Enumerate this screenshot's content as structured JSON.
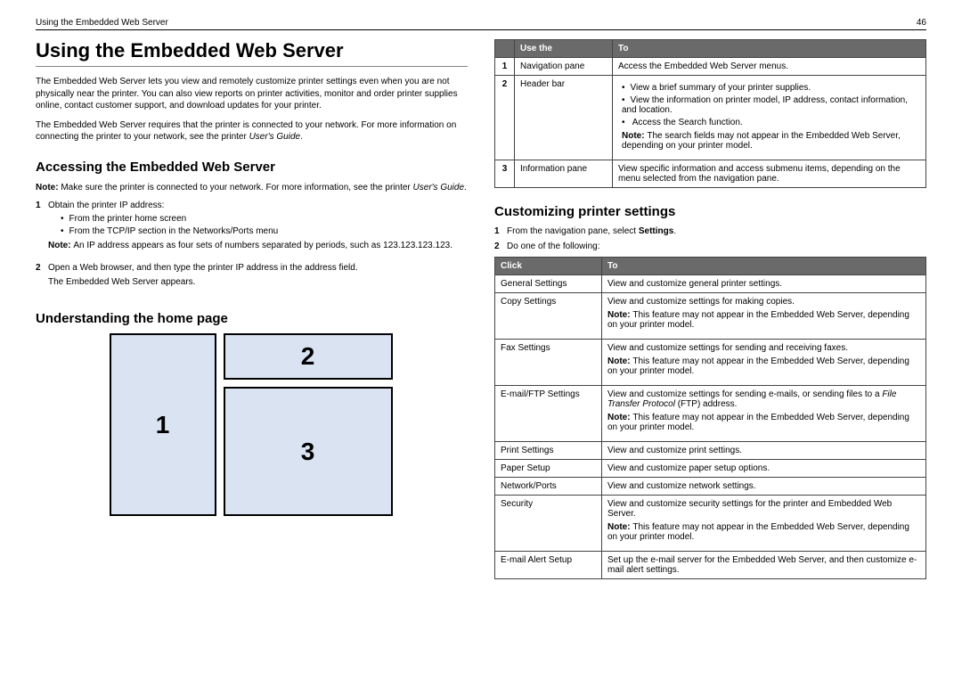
{
  "header": {
    "left": "Using the Embedded Web Server",
    "page": "46"
  },
  "h1": "Using the Embedded Web Server",
  "intro1": "The Embedded Web Server lets you view and remotely customize printer settings even when you are not physically near the printer. You can also view reports on printer activities, monitor and order printer supplies online, contact customer support, and download updates for your printer.",
  "intro2_a": "The Embedded Web Server requires that the printer is connected to your network. For more information on connecting the printer to your network, see the printer ",
  "intro2_b": "User's Guide",
  "intro2_c": ".",
  "h2_access": "Accessing the Embedded Web Server",
  "access_note_a": "Note: ",
  "access_note_b": "Make sure the printer is connected to your network. For more information, see the printer ",
  "access_note_c": "User's Guide",
  "access_note_d": ".",
  "step1": "Obtain the printer IP address:",
  "step1_b1": "From the printer home screen",
  "step1_b2": "From the TCP/IP section in the Networks/Ports menu",
  "step1_note_a": "Note: ",
  "step1_note_b": "An IP address appears as four sets of numbers separated by periods, such as 123.123.123.123.",
  "step2": "Open a Web browser, and then type the printer IP address in the address field.",
  "step2_sub": "The Embedded Web Server appears.",
  "h2_home": "Understanding the home page",
  "diagram": {
    "l1": "1",
    "l2": "2",
    "l3": "3"
  },
  "table1": {
    "h0": "",
    "h1": "Use the",
    "h2": "To",
    "r1": {
      "n": "1",
      "name": "Navigation pane",
      "to": "Access the Embedded Web Server menus."
    },
    "r2": {
      "n": "2",
      "name": "Header bar",
      "b1": "View a brief summary of your printer supplies.",
      "b2": "View the information on printer model, IP address, contact information, and location.",
      "b3": "Access the Search function.",
      "note_a": "Note: ",
      "note_b": "The search fields may not appear in the Embedded Web Server, depending on your printer model."
    },
    "r3": {
      "n": "3",
      "name": "Information pane",
      "to": "View specific information and access submenu items, depending on the menu selected from the navigation pane."
    }
  },
  "h2_custom": "Customizing printer settings",
  "cust_s1_a": "From the navigation pane, select ",
  "cust_s1_b": "Settings",
  "cust_s1_c": ".",
  "cust_s2": "Do one of the following:",
  "table2": {
    "h1": "Click",
    "h2": "To",
    "rows": [
      {
        "click": "General Settings",
        "to": "View and customize general printer settings."
      },
      {
        "click": "Copy Settings",
        "to": "View and customize settings for making copies.",
        "note": "This feature may not appear in the Embedded Web Server, depending on your printer model."
      },
      {
        "click": "Fax Settings",
        "to": "View and customize settings for sending and receiving faxes.",
        "note": "This feature may not appear in the Embedded Web Server, depending on your printer model."
      },
      {
        "click": "E-mail/FTP Settings",
        "to_a": "View and customize settings for sending e-mails, or sending files to a ",
        "to_b": "File Transfer Protocol",
        "to_c": " (FTP) address.",
        "note": "This feature may not appear in the Embedded Web Server, depending on your printer model."
      },
      {
        "click": "Print Settings",
        "to": "View and customize print settings."
      },
      {
        "click": "Paper Setup",
        "to": "View and customize paper setup options."
      },
      {
        "click": "Network/Ports",
        "to": "View and customize network settings."
      },
      {
        "click": "Security",
        "to": "View and customize security settings for the printer and Embedded Web Server.",
        "note": "This feature may not appear in the Embedded Web Server, depending on your printer model."
      },
      {
        "click": "E-mail Alert Setup",
        "to": "Set up the e-mail server for the Embedded Web Server, and then customize e-mail alert settings."
      }
    ]
  },
  "labels": {
    "note": "Note: "
  }
}
